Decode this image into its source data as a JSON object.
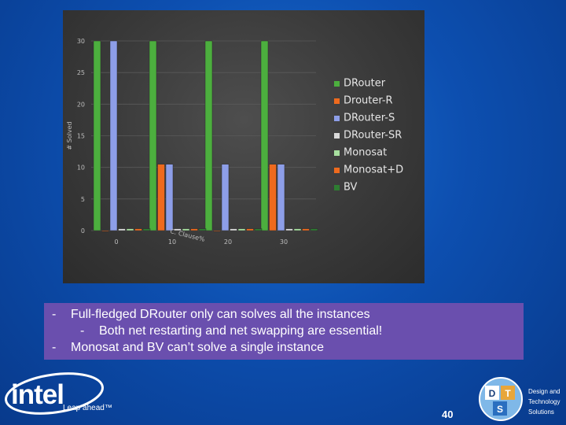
{
  "chart_data": {
    "type": "bar",
    "ylabel": "# Solved",
    "ylim": [
      0,
      30
    ],
    "yticks": [
      0,
      5,
      10,
      15,
      20,
      25,
      30
    ],
    "xticks": [
      0,
      10,
      20,
      30
    ],
    "overlay_text": "C. Clause%",
    "categories": [
      "0",
      "10",
      "20",
      "30"
    ],
    "legend_position": "right",
    "grid": true,
    "series": [
      {
        "name": "DRouter",
        "color": "#4caf3e",
        "values": [
          30,
          30,
          30,
          30
        ]
      },
      {
        "name": "Drouter-R",
        "color": "#ee6a1e",
        "values": [
          0,
          10.5,
          0,
          10.5
        ]
      },
      {
        "name": "DRouter-S",
        "color": "#8d9ee8",
        "values": [
          30,
          10.5,
          10.5,
          10.5
        ]
      },
      {
        "name": "DRouter-SR",
        "color": "#d9d9d9",
        "values": [
          0.3,
          0.3,
          0.3,
          0.3
        ]
      },
      {
        "name": "Monosat",
        "color": "#a8e0a0",
        "values": [
          0.3,
          0.3,
          0.3,
          0.3
        ]
      },
      {
        "name": "Monosat+D",
        "color": "#ee6a1e",
        "values": [
          0.3,
          0.3,
          0.3,
          0.3
        ]
      },
      {
        "name": "BV",
        "color": "#2e7d32",
        "values": [
          0.3,
          0.3,
          0.3,
          0.3
        ]
      }
    ]
  },
  "bullets": {
    "line1": "Full-fledged DRouter only can solves all the instances",
    "line2": "Both net restarting and net swapping are essential!",
    "line3": "Monosat and BV can’t solve a single instance",
    "dash": "-"
  },
  "footer": {
    "intel_word": "intel",
    "tagline": "Leap ahead™",
    "page_number": "40",
    "dts_line1": "Design and",
    "dts_line2": "Technology",
    "dts_line3": "Solutions",
    "dts_letters": [
      "D",
      "T",
      "S"
    ]
  }
}
